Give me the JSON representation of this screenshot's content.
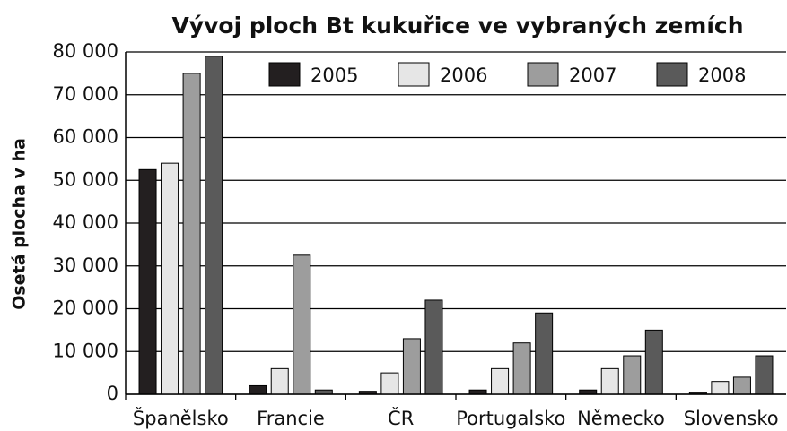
{
  "chart_data": {
    "type": "bar",
    "title": "Vývoj ploch Bt kukuřice ve vybraných zemích",
    "y_label": "Osetá plocha v ha",
    "categories": [
      "Španělsko",
      "Francie",
      "ČR",
      "Portugalsko",
      "Německo",
      "Slovensko"
    ],
    "series": [
      {
        "name": "2005",
        "color": "#231f20",
        "values": [
          52500,
          2000,
          700,
          1000,
          1000,
          500
        ]
      },
      {
        "name": "2006",
        "color": "#e6e6e6",
        "values": [
          54000,
          6000,
          5000,
          6000,
          6000,
          3000
        ]
      },
      {
        "name": "2007",
        "color": "#9d9d9d",
        "values": [
          75000,
          32500,
          13000,
          12000,
          9000,
          4000
        ]
      },
      {
        "name": "2008",
        "color": "#5a5a5a",
        "values": [
          79000,
          1000,
          22000,
          19000,
          15000,
          9000
        ]
      }
    ],
    "ylim": [
      0,
      80000
    ],
    "yticks": [
      0,
      {
        "value": 10000,
        "label": "10 000"
      },
      {
        "value": 20000,
        "label": "20 000"
      },
      {
        "value": 30000,
        "label": "30 000"
      },
      {
        "value": 40000,
        "label": "40 000"
      },
      {
        "value": 50000,
        "label": "50 000"
      },
      {
        "value": 60000,
        "label": "60 000"
      },
      {
        "value": 70000,
        "label": "70 000"
      },
      {
        "value": 80000,
        "label": "80 000"
      }
    ],
    "grid": true,
    "legend": "top"
  }
}
